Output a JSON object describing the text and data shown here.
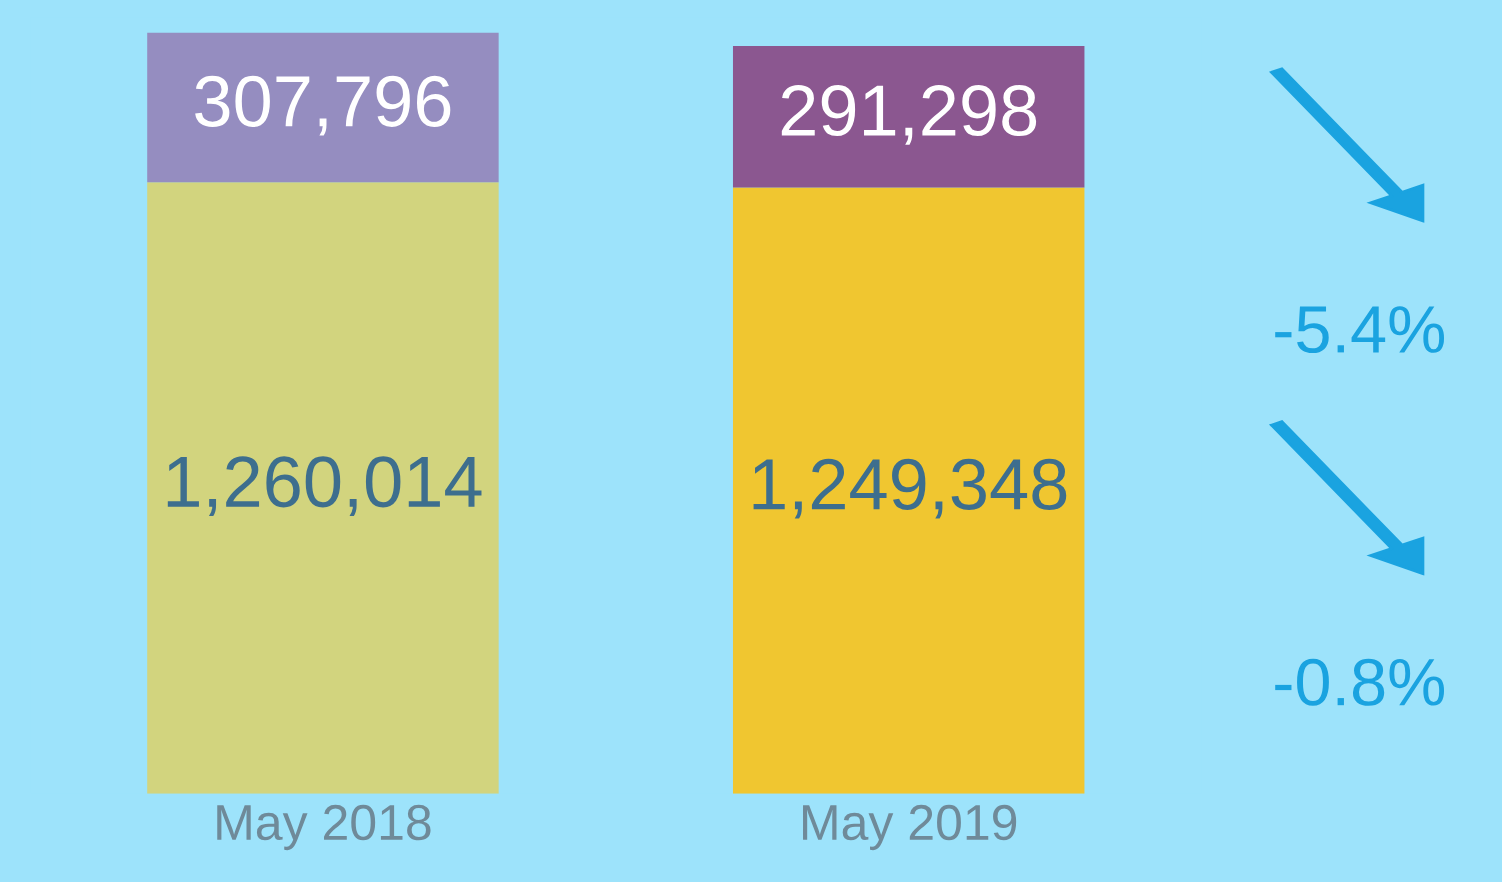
{
  "chart_data": {
    "type": "bar",
    "stacked": true,
    "categories": [
      "May 2018",
      "May 2019"
    ],
    "series": [
      {
        "colors": [
          "#d2d47e",
          "#f0c630"
        ],
        "values": [
          1260014,
          1249348
        ],
        "value_labels": [
          "1,260,014",
          "1,249,348"
        ]
      },
      {
        "colors": [
          "#958dc0",
          "#8b5790"
        ],
        "values": [
          307796,
          291298
        ],
        "value_labels": [
          "307,796",
          "291,298"
        ]
      }
    ],
    "tick_labels": "x",
    "grid": false,
    "legend": false,
    "annotations": [
      "-5.4%",
      "-0.8%"
    ]
  }
}
